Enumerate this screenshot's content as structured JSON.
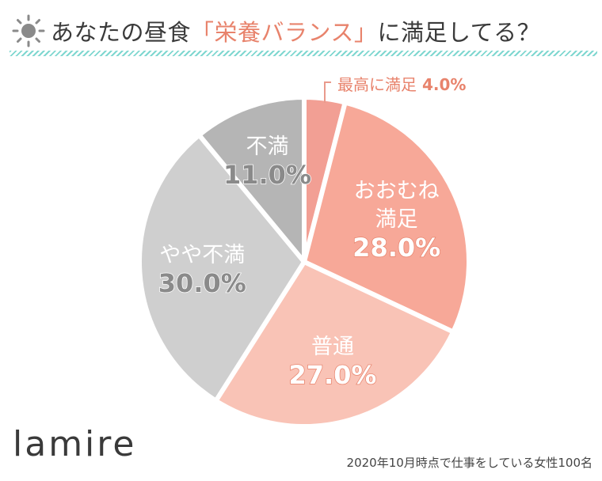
{
  "title": {
    "prefix": "あなたの昼食",
    "emphasis": "「栄養バランス」",
    "suffix": "に満足してる？",
    "icon": "sun-icon"
  },
  "brand": "lamire",
  "footnote": "2020年10月時点で仕事をしている女性100名",
  "chart_data": {
    "type": "pie",
    "categories": [
      "最高に満足",
      "おおむね満足",
      "普通",
      "やや不満",
      "不満"
    ],
    "values": [
      4.0,
      28.0,
      27.0,
      30.0,
      11.0
    ],
    "display_labels": [
      [
        "最高に満足"
      ],
      [
        "おおむね",
        "満足"
      ],
      [
        "普通"
      ],
      [
        "やや不満"
      ],
      [
        "不満"
      ]
    ],
    "value_labels": [
      "4.0%",
      "28.0%",
      "27.0%",
      "30.0%",
      "11.0%"
    ],
    "colors": [
      "#f29f94",
      "#f7a898",
      "#f9c3b6",
      "#cfcfcf",
      "#b5b5b5"
    ],
    "start": "12 o'clock",
    "direction": "clockwise",
    "legend": "none"
  }
}
